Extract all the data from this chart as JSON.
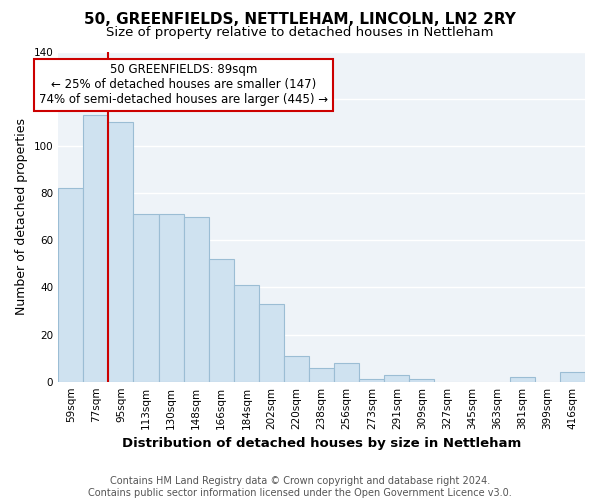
{
  "title": "50, GREENFIELDS, NETTLEHAM, LINCOLN, LN2 2RY",
  "subtitle": "Size of property relative to detached houses in Nettleham",
  "xlabel": "Distribution of detached houses by size in Nettleham",
  "ylabel": "Number of detached properties",
  "categories": [
    "59sqm",
    "77sqm",
    "95sqm",
    "113sqm",
    "130sqm",
    "148sqm",
    "166sqm",
    "184sqm",
    "202sqm",
    "220sqm",
    "238sqm",
    "256sqm",
    "273sqm",
    "291sqm",
    "309sqm",
    "327sqm",
    "345sqm",
    "363sqm",
    "381sqm",
    "399sqm",
    "416sqm"
  ],
  "values": [
    82,
    113,
    110,
    71,
    71,
    70,
    52,
    41,
    33,
    11,
    6,
    8,
    1,
    3,
    1,
    0,
    0,
    0,
    2,
    0,
    4
  ],
  "bar_fill_color": "#cfe2f0",
  "bar_edge_color": "#9bbdd4",
  "vline_color": "#cc0000",
  "vline_x_index": 1.5,
  "ylim": [
    0,
    140
  ],
  "yticks": [
    0,
    20,
    40,
    60,
    80,
    100,
    120,
    140
  ],
  "annotation_title": "50 GREENFIELDS: 89sqm",
  "annotation_line1": "← 25% of detached houses are smaller (147)",
  "annotation_line2": "74% of semi-detached houses are larger (445) →",
  "annotation_box_color": "#ffffff",
  "annotation_box_edge": "#cc0000",
  "footer_line1": "Contains HM Land Registry data © Crown copyright and database right 2024.",
  "footer_line2": "Contains public sector information licensed under the Open Government Licence v3.0.",
  "background_color": "#ffffff",
  "plot_bg_color": "#eef3f8",
  "grid_color": "#ffffff",
  "title_fontsize": 11,
  "subtitle_fontsize": 9.5,
  "axis_label_fontsize": 9,
  "tick_fontsize": 7.5,
  "annotation_fontsize": 8.5,
  "footer_fontsize": 7
}
